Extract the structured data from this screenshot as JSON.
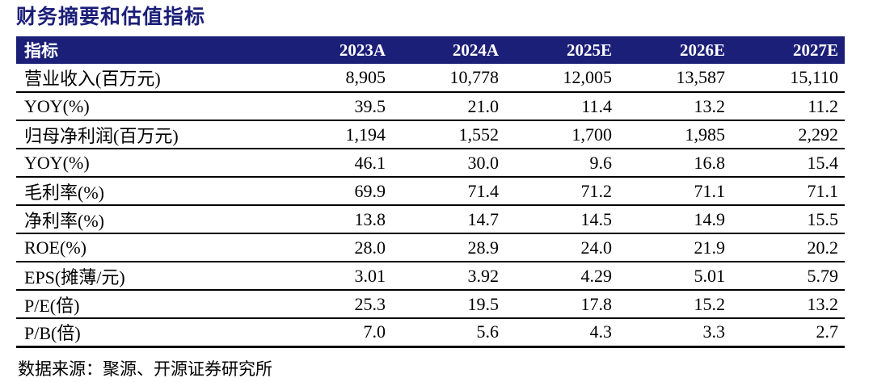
{
  "page": {
    "title": "财务摘要和估值指标",
    "source_note": "数据来源：聚源、开源证券研究所"
  },
  "table": {
    "header": [
      "指标",
      "2023A",
      "2024A",
      "2025E",
      "2026E",
      "2027E"
    ],
    "rows": [
      {
        "label": "营业收入(百万元)",
        "values": [
          "8,905",
          "10,778",
          "12,005",
          "13,587",
          "15,110"
        ]
      },
      {
        "label": "YOY(%)",
        "values": [
          "39.5",
          "21.0",
          "11.4",
          "13.2",
          "11.2"
        ]
      },
      {
        "label": "归母净利润(百万元)",
        "values": [
          "1,194",
          "1,552",
          "1,700",
          "1,985",
          "2,292"
        ]
      },
      {
        "label": "YOY(%)",
        "values": [
          "46.1",
          "30.0",
          "9.6",
          "16.8",
          "15.4"
        ]
      },
      {
        "label": "毛利率(%)",
        "values": [
          "69.9",
          "71.4",
          "71.2",
          "71.1",
          "71.1"
        ]
      },
      {
        "label": "净利率(%)",
        "values": [
          "13.8",
          "14.7",
          "14.5",
          "14.9",
          "15.5"
        ]
      },
      {
        "label": "ROE(%)",
        "values": [
          "28.0",
          "28.9",
          "24.0",
          "21.9",
          "20.2"
        ]
      },
      {
        "label": "EPS(摊薄/元)",
        "values": [
          "3.01",
          "3.92",
          "4.29",
          "5.01",
          "5.79"
        ]
      },
      {
        "label": "P/E(倍)",
        "values": [
          "25.3",
          "19.5",
          "17.8",
          "15.2",
          "13.2"
        ]
      },
      {
        "label": "P/B(倍)",
        "values": [
          "7.0",
          "5.6",
          "4.3",
          "3.3",
          "2.7"
        ]
      }
    ]
  },
  "colors": {
    "header_bg": "#1B1F78",
    "title_text": "#1B1F78",
    "header_text": "#FFFFFF",
    "body_text": "#000000"
  }
}
